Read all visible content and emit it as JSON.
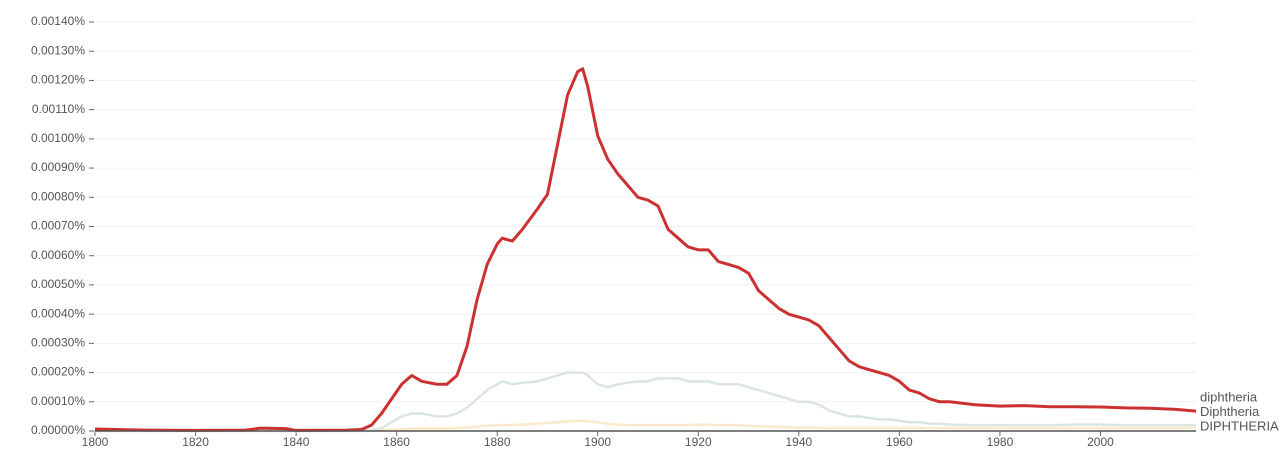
{
  "chart_data": {
    "type": "line",
    "x": [
      1800,
      1810,
      1820,
      1830,
      1833,
      1838,
      1840,
      1850,
      1853,
      1855,
      1857,
      1859,
      1861,
      1863,
      1865,
      1868,
      1870,
      1872,
      1874,
      1876,
      1878,
      1880,
      1881,
      1883,
      1885,
      1888,
      1890,
      1892,
      1894,
      1896,
      1897,
      1898,
      1900,
      1902,
      1904,
      1906,
      1908,
      1910,
      1912,
      1914,
      1916,
      1918,
      1920,
      1922,
      1924,
      1926,
      1928,
      1930,
      1932,
      1934,
      1936,
      1938,
      1940,
      1942,
      1944,
      1946,
      1948,
      1950,
      1952,
      1954,
      1956,
      1958,
      1960,
      1962,
      1964,
      1966,
      1968,
      1970,
      1975,
      1980,
      1985,
      1990,
      1995,
      2000,
      2005,
      2010,
      2015,
      2019
    ],
    "series": [
      {
        "name": "diphtheria",
        "color": "#cc3131",
        "values": [
          7e-06,
          3e-06,
          2e-06,
          3e-06,
          1e-05,
          8e-06,
          2e-06,
          3e-06,
          5e-06,
          2e-05,
          6e-05,
          0.00011,
          0.00016,
          0.00019,
          0.00017,
          0.00016,
          0.00016,
          0.00019,
          0.00029,
          0.00045,
          0.00057,
          0.00064,
          0.00066,
          0.00065,
          0.00069,
          0.00076,
          0.00081,
          0.00098,
          0.00115,
          0.00123,
          0.00124,
          0.00118,
          0.00101,
          0.00093,
          0.00088,
          0.00084,
          0.0008,
          0.00079,
          0.00077,
          0.00069,
          0.00066,
          0.00063,
          0.00062,
          0.00062,
          0.00058,
          0.00057,
          0.00056,
          0.00054,
          0.00048,
          0.00045,
          0.00042,
          0.0004,
          0.00039,
          0.00038,
          0.00036,
          0.00032,
          0.00028,
          0.00024,
          0.00022,
          0.00021,
          0.0002,
          0.00019,
          0.00017,
          0.00014,
          0.00013,
          0.00011,
          0.0001,
          0.0001,
          9e-05,
          8.5e-05,
          8.7e-05,
          8.3e-05,
          8.3e-05,
          8.2e-05,
          7.9e-05,
          7.8e-05,
          7.4e-05,
          6.8e-05
        ]
      },
      {
        "name": "Diphtheria",
        "color": "#dbe6e3",
        "values": [
          0,
          0,
          0,
          0,
          0,
          0,
          0,
          0,
          0,
          3e-06,
          1e-05,
          3e-05,
          5e-05,
          6e-05,
          6e-05,
          5e-05,
          5e-05,
          6e-05,
          8e-05,
          0.00011,
          0.00014,
          0.00016,
          0.00017,
          0.00016,
          0.000165,
          0.00017,
          0.00018,
          0.00019,
          0.0002,
          0.0002,
          0.0002,
          0.00019,
          0.00016,
          0.00015,
          0.00016,
          0.000165,
          0.00017,
          0.00017,
          0.00018,
          0.00018,
          0.00018,
          0.00017,
          0.00017,
          0.00017,
          0.00016,
          0.00016,
          0.00016,
          0.00015,
          0.00014,
          0.00013,
          0.00012,
          0.00011,
          0.0001,
          0.0001,
          9e-05,
          7e-05,
          6e-05,
          5e-05,
          5e-05,
          4.5e-05,
          4e-05,
          4e-05,
          3.5e-05,
          3e-05,
          3e-05,
          2.5e-05,
          2.5e-05,
          2.2e-05,
          2e-05,
          2e-05,
          2e-05,
          2e-05,
          2.2e-05,
          2.2e-05,
          2e-05,
          2e-05,
          2e-05,
          2e-05
        ]
      },
      {
        "name": "DIPHTHERIA",
        "color": "#fbe9cb",
        "values": [
          0,
          0,
          0,
          0,
          0,
          0,
          0,
          0,
          0,
          1e-06,
          2e-06,
          4e-06,
          6e-06,
          8e-06,
          8e-06,
          8e-06,
          8e-06,
          1e-05,
          1.2e-05,
          1.5e-05,
          1.8e-05,
          2e-05,
          2e-05,
          2e-05,
          2.2e-05,
          2.5e-05,
          2.8e-05,
          3e-05,
          3.2e-05,
          3.5e-05,
          3.5e-05,
          3.3e-05,
          3e-05,
          2.5e-05,
          2.2e-05,
          2e-05,
          2e-05,
          2e-05,
          2e-05,
          2e-05,
          2e-05,
          2e-05,
          2.2e-05,
          2.2e-05,
          2e-05,
          2e-05,
          2e-05,
          1.8e-05,
          1.6e-05,
          1.5e-05,
          1.4e-05,
          1.3e-05,
          1.2e-05,
          1.2e-05,
          1.1e-05,
          1e-05,
          1e-05,
          1e-05,
          1e-05,
          1e-05,
          1e-05,
          1e-05,
          1e-05,
          1e-05,
          1e-05,
          1e-05,
          1e-05,
          1e-05,
          1e-05,
          1e-05,
          1e-05,
          1e-05,
          1e-05,
          1e-05,
          1e-05,
          1e-05,
          1e-05,
          1.1e-05
        ]
      }
    ],
    "xlim": [
      1800,
      2019
    ],
    "xticks": [
      1800,
      1820,
      1840,
      1860,
      1880,
      1900,
      1920,
      1940,
      1960,
      1980,
      2000
    ],
    "ylim": [
      0,
      0.0014
    ],
    "yticks": [
      {
        "value": 0,
        "label": "0.00000%"
      },
      {
        "value": 0.0001,
        "label": "0.00010%"
      },
      {
        "value": 0.0002,
        "label": "0.00020%"
      },
      {
        "value": 0.0003,
        "label": "0.00030%"
      },
      {
        "value": 0.0004,
        "label": "0.00040%"
      },
      {
        "value": 0.0005,
        "label": "0.00050%"
      },
      {
        "value": 0.0006,
        "label": "0.00060%"
      },
      {
        "value": 0.0007,
        "label": "0.00070%"
      },
      {
        "value": 0.0008,
        "label": "0.00080%"
      },
      {
        "value": 0.0009,
        "label": "0.00090%"
      },
      {
        "value": 0.001,
        "label": "0.00100%"
      },
      {
        "value": 0.0011,
        "label": "0.00110%"
      },
      {
        "value": 0.0012,
        "label": "0.00120%"
      },
      {
        "value": 0.0013,
        "label": "0.00130%"
      },
      {
        "value": 0.0014,
        "label": "0.00140%"
      }
    ],
    "grid": true
  }
}
